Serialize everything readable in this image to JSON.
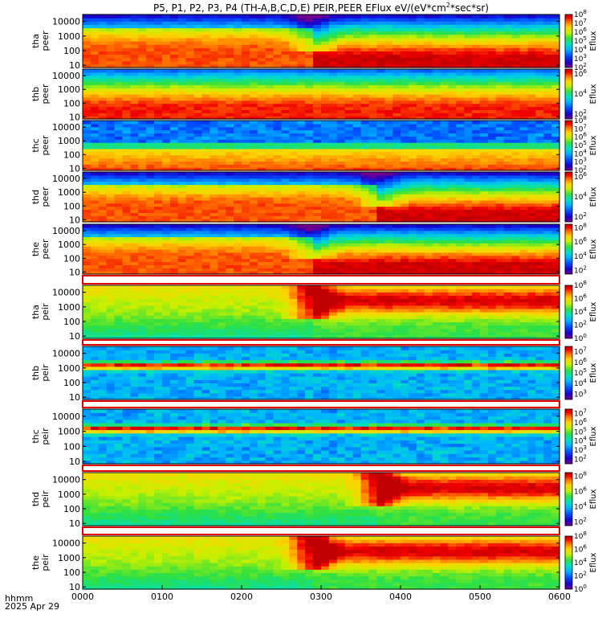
{
  "chart_data": {
    "type": "heatmap",
    "title": "P5, P1, P2, P3, P4 (TH-A,B,C,D,E) PEIR,PEER EFlux eV/(eV*cm",
    "title_sup": "2",
    "title_tail": "*sec*sr)",
    "time_axis": {
      "label_line1": "hhmm",
      "label_line2": "2025 Apr 29",
      "ticks": [
        "0000",
        "0100",
        "0200",
        "0300",
        "0400",
        "0500",
        "0600"
      ],
      "range_hours": [
        0,
        6
      ]
    },
    "energy_axis": {
      "scale": "log",
      "range": [
        7,
        30000
      ],
      "tick_values": [
        10,
        100,
        1000,
        10000
      ],
      "tick_labels": [
        "10",
        "100",
        "1000",
        "10000"
      ]
    },
    "colorbar_label": "Eflux",
    "panels": [
      {
        "probe": "tha",
        "species": "peer",
        "colorbar_exponents": [
          "2",
          "3",
          "4",
          "5",
          "6",
          "7",
          "8"
        ],
        "colorbar_range": [
          2,
          8
        ],
        "regime": "electron_transition",
        "transition_hour": 2.88,
        "low_level": 7.6,
        "high_level": 5.4
      },
      {
        "probe": "thb",
        "species": "peer",
        "colorbar_exponents": [
          "2",
          "4",
          "6"
        ],
        "colorbar_range": [
          1.5,
          6.5
        ],
        "regime": "electron_uniform",
        "transition_hour": null,
        "low_level": 6.4,
        "high_level": 4.0
      },
      {
        "probe": "thc",
        "species": "peer",
        "colorbar_exponents": [
          "2",
          "3",
          "4",
          "5",
          "6",
          "7",
          "8"
        ],
        "colorbar_range": [
          2,
          8
        ],
        "regime": "electron_noisy",
        "transition_hour": null,
        "low_level": 7.0,
        "high_level": 3.0
      },
      {
        "probe": "thd",
        "species": "peer",
        "colorbar_exponents": [
          "2",
          "4",
          "6"
        ],
        "colorbar_range": [
          1.5,
          6.5
        ],
        "regime": "electron_transition",
        "transition_hour": 3.72,
        "low_level": 6.0,
        "high_level": 4.6
      },
      {
        "probe": "the",
        "species": "peer",
        "colorbar_exponents": [
          "2",
          "4",
          "6",
          "8"
        ],
        "colorbar_range": [
          1.5,
          8.5
        ],
        "regime": "electron_transition",
        "transition_hour": 2.88,
        "low_level": 8.0,
        "high_level": 5.6
      },
      {
        "probe": "tha",
        "species": "peir",
        "colorbar_exponents": [
          "0",
          "2",
          "4",
          "6",
          "8"
        ],
        "colorbar_range": [
          0,
          8
        ],
        "regime": "ion_transition",
        "transition_hour": 2.88,
        "low_level": 3.6,
        "high_level": 6.4
      },
      {
        "probe": "thb",
        "species": "peir",
        "colorbar_exponents": [
          "3",
          "4",
          "5",
          "6",
          "7"
        ],
        "colorbar_range": [
          2.5,
          7.5
        ],
        "regime": "ion_band",
        "transition_hour": null,
        "low_level": 3.2,
        "high_level": 6.8
      },
      {
        "probe": "thc",
        "species": "peir",
        "colorbar_exponents": [
          "2",
          "3",
          "4",
          "5",
          "6",
          "7"
        ],
        "colorbar_range": [
          1.5,
          7.5
        ],
        "regime": "ion_band",
        "transition_hour": null,
        "low_level": 3.6,
        "high_level": 6.6
      },
      {
        "probe": "thd",
        "species": "peir",
        "colorbar_exponents": [
          "2",
          "4",
          "6",
          "8"
        ],
        "colorbar_range": [
          1.5,
          8.5
        ],
        "regime": "ion_transition",
        "transition_hour": 3.72,
        "low_level": 4.2,
        "high_level": 6.6
      },
      {
        "probe": "the",
        "species": "peir",
        "colorbar_exponents": [
          "0",
          "2",
          "4",
          "6",
          "8"
        ],
        "colorbar_range": [
          0,
          8
        ],
        "regime": "ion_transition",
        "transition_hour": 2.88,
        "low_level": 3.8,
        "high_level": 6.6
      }
    ]
  }
}
